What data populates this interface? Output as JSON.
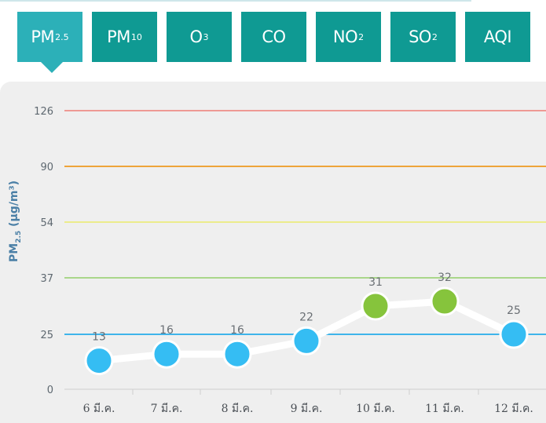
{
  "tabs": [
    {
      "main": "PM",
      "sub": "2.5",
      "name": "tab-pm25",
      "active": true
    },
    {
      "main": "PM",
      "sub": "10",
      "name": "tab-pm10",
      "active": false
    },
    {
      "main": "O",
      "sub": "3",
      "name": "tab-o3",
      "active": false
    },
    {
      "main": "CO",
      "sub": "",
      "name": "tab-co",
      "active": false
    },
    {
      "main": "NO",
      "sub": "2",
      "name": "tab-no2",
      "active": false
    },
    {
      "main": "SO",
      "sub": "2",
      "name": "tab-so2",
      "active": false
    },
    {
      "main": "AQI",
      "sub": "",
      "name": "tab-aqi",
      "active": false
    }
  ],
  "colors": {
    "tab_bg": "#0f9a93",
    "tab_active_bg": "#2cb0b8",
    "panel_bg": "#efefef",
    "point_blue": "#35bdf3",
    "point_green": "#86c43c",
    "line": "#ffffff"
  },
  "chart_data": {
    "type": "line",
    "ylabel_main": "PM",
    "ylabel_sub": "2.5",
    "ylabel_unit": " (µg/m³)",
    "categories": [
      "6 มี.ค.",
      "7 มี.ค.",
      "8 มี.ค.",
      "9 มี.ค.",
      "10 มี.ค.",
      "11 มี.ค.",
      "12 มี.ค."
    ],
    "values": [
      13,
      16,
      16,
      22,
      31,
      32,
      25
    ],
    "point_colors": [
      "#35bdf3",
      "#35bdf3",
      "#35bdf3",
      "#35bdf3",
      "#86c43c",
      "#86c43c",
      "#35bdf3"
    ],
    "y_ticks": [
      0,
      25,
      37,
      54,
      90,
      126
    ],
    "thresholds": [
      {
        "value": 25,
        "color": "#3fb4ea"
      },
      {
        "value": 37,
        "color": "#a9d68a"
      },
      {
        "value": 54,
        "color": "#ecec8c"
      },
      {
        "value": 90,
        "color": "#eea43a"
      },
      {
        "value": 126,
        "color": "#ee9a94"
      }
    ],
    "grid": false
  }
}
